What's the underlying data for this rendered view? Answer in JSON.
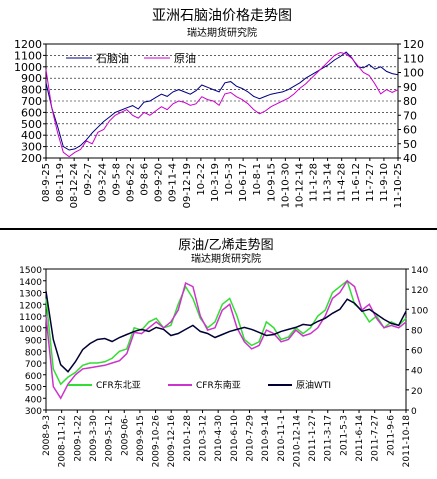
{
  "chart_data": [
    {
      "type": "line",
      "title": "亚洲石脑油价格走势图",
      "subtitle": "瑞达期货研究院",
      "x_tick_labels": [
        "08-9-25",
        "08-11-9",
        "08-12-24",
        "09-2-7",
        "09-3-24",
        "09-5-8",
        "09-6-22",
        "09-8-6",
        "09-9-20",
        "09-11-4",
        "09-12-19",
        "10-2-2",
        "10-3-19",
        "10-5-3",
        "10-6-17",
        "10-8-1",
        "10-9-15",
        "10-10-30",
        "10-12-14",
        "11-1-28",
        "11-3-14",
        "11-4-28",
        "11-6-12",
        "11-7-27",
        "11-9-10",
        "11-10-25"
      ],
      "y_left": {
        "ticks": [
          200,
          300,
          400,
          500,
          600,
          700,
          800,
          900,
          1000,
          1100,
          1200
        ],
        "range": [
          200,
          1200
        ]
      },
      "y_right": {
        "ticks": [
          40,
          50,
          60,
          70,
          80,
          90,
          100,
          110,
          120
        ],
        "range": [
          40,
          120
        ]
      },
      "legend_position": "top-left",
      "grid": "horizontal dashed",
      "series": [
        {
          "name": "石脑油",
          "axis": "left",
          "color": "#000080",
          "values": [
            860,
            640,
            480,
            300,
            270,
            280,
            310,
            360,
            420,
            470,
            520,
            560,
            600,
            620,
            640,
            660,
            630,
            690,
            700,
            730,
            760,
            740,
            780,
            800,
            780,
            760,
            790,
            840,
            820,
            800,
            780,
            860,
            870,
            830,
            810,
            780,
            740,
            720,
            740,
            760,
            770,
            780,
            800,
            830,
            860,
            900,
            930,
            960,
            990,
            1020,
            1060,
            1090,
            1130,
            1080,
            1000,
            990,
            1020,
            980,
            1000,
            960,
            940,
            930
          ]
        },
        {
          "name": "原油",
          "axis": "right",
          "color": "#cc00cc",
          "values": [
            102,
            75,
            58,
            44,
            41,
            44,
            46,
            52,
            50,
            58,
            60,
            66,
            70,
            72,
            74,
            70,
            68,
            72,
            70,
            73,
            76,
            74,
            78,
            80,
            79,
            77,
            78,
            83,
            81,
            80,
            77,
            85,
            86,
            83,
            81,
            78,
            74,
            71,
            73,
            76,
            78,
            80,
            82,
            85,
            89,
            92,
            96,
            100,
            104,
            108,
            112,
            114,
            113,
            110,
            105,
            100,
            98,
            92,
            85,
            88,
            86,
            88
          ]
        }
      ]
    },
    {
      "type": "line",
      "title": "原油/乙烯走势图",
      "subtitle": "瑞达期货研究院",
      "x_tick_labels": [
        "2008-9-3",
        "2008-11-12",
        "2009-1-22",
        "2009-3-30",
        "2009-5-12",
        "2009-06-",
        "2009-9-15",
        "2009-10-26",
        "2009-12-16",
        "2010-1-28",
        "2010-3-12",
        "2010-4-30",
        "2010-6-10",
        "2010-7-29",
        "2010-9-14",
        "2010-11-1",
        "2010-12-14",
        "2011-1-27",
        "2011-3-17",
        "2011-5-3",
        "2011-6-14",
        "2011-7-27",
        "2011-9-6",
        "2011-10-18"
      ],
      "y_left": {
        "ticks": [
          300,
          400,
          500,
          600,
          700,
          800,
          900,
          1000,
          1100,
          1200,
          1300,
          1400,
          1500
        ],
        "range": [
          300,
          1500
        ]
      },
      "y_right": {
        "ticks": [
          0,
          20,
          40,
          60,
          80,
          100,
          120,
          140
        ],
        "range": [
          0,
          140
        ]
      },
      "legend_position": "bottom",
      "grid": "none",
      "series": [
        {
          "name": "CFR东北亚",
          "axis": "left",
          "color": "#33dd33",
          "values": [
            1250,
            650,
            520,
            580,
            620,
            680,
            700,
            700,
            710,
            740,
            800,
            820,
            1000,
            980,
            1050,
            1080,
            1000,
            1020,
            1200,
            1350,
            1250,
            1080,
            1000,
            1050,
            1200,
            1250,
            1100,
            900,
            850,
            880,
            1050,
            1000,
            900,
            920,
            1000,
            950,
            1000,
            1100,
            1150,
            1300,
            1350,
            1400,
            1200,
            1150,
            1050,
            1100,
            1000,
            1050,
            1020,
            1080
          ]
        },
        {
          "name": "CFR东南亚",
          "axis": "left",
          "color": "#cc33cc",
          "values": [
            1100,
            500,
            400,
            520,
            600,
            650,
            660,
            670,
            680,
            700,
            720,
            780,
            960,
            950,
            1000,
            1050,
            1000,
            1050,
            1150,
            1380,
            1350,
            1100,
            980,
            1000,
            1150,
            1200,
            1000,
            880,
            820,
            850,
            980,
            950,
            880,
            900,
            980,
            930,
            950,
            1000,
            1100,
            1250,
            1300,
            1400,
            1350,
            1150,
            1200,
            1080,
            1000,
            1020,
            1000,
            1050
          ]
        },
        {
          "name": "原油WTI",
          "axis": "right",
          "color": "#000033",
          "values": [
            118,
            70,
            45,
            38,
            48,
            60,
            66,
            70,
            71,
            68,
            72,
            75,
            78,
            80,
            78,
            82,
            80,
            74,
            76,
            80,
            84,
            78,
            76,
            72,
            75,
            78,
            80,
            82,
            80,
            77,
            74,
            75,
            78,
            80,
            82,
            85,
            84,
            88,
            91,
            96,
            100,
            110,
            106,
            98,
            100,
            95,
            90,
            86,
            84,
            98
          ]
        }
      ]
    }
  ]
}
